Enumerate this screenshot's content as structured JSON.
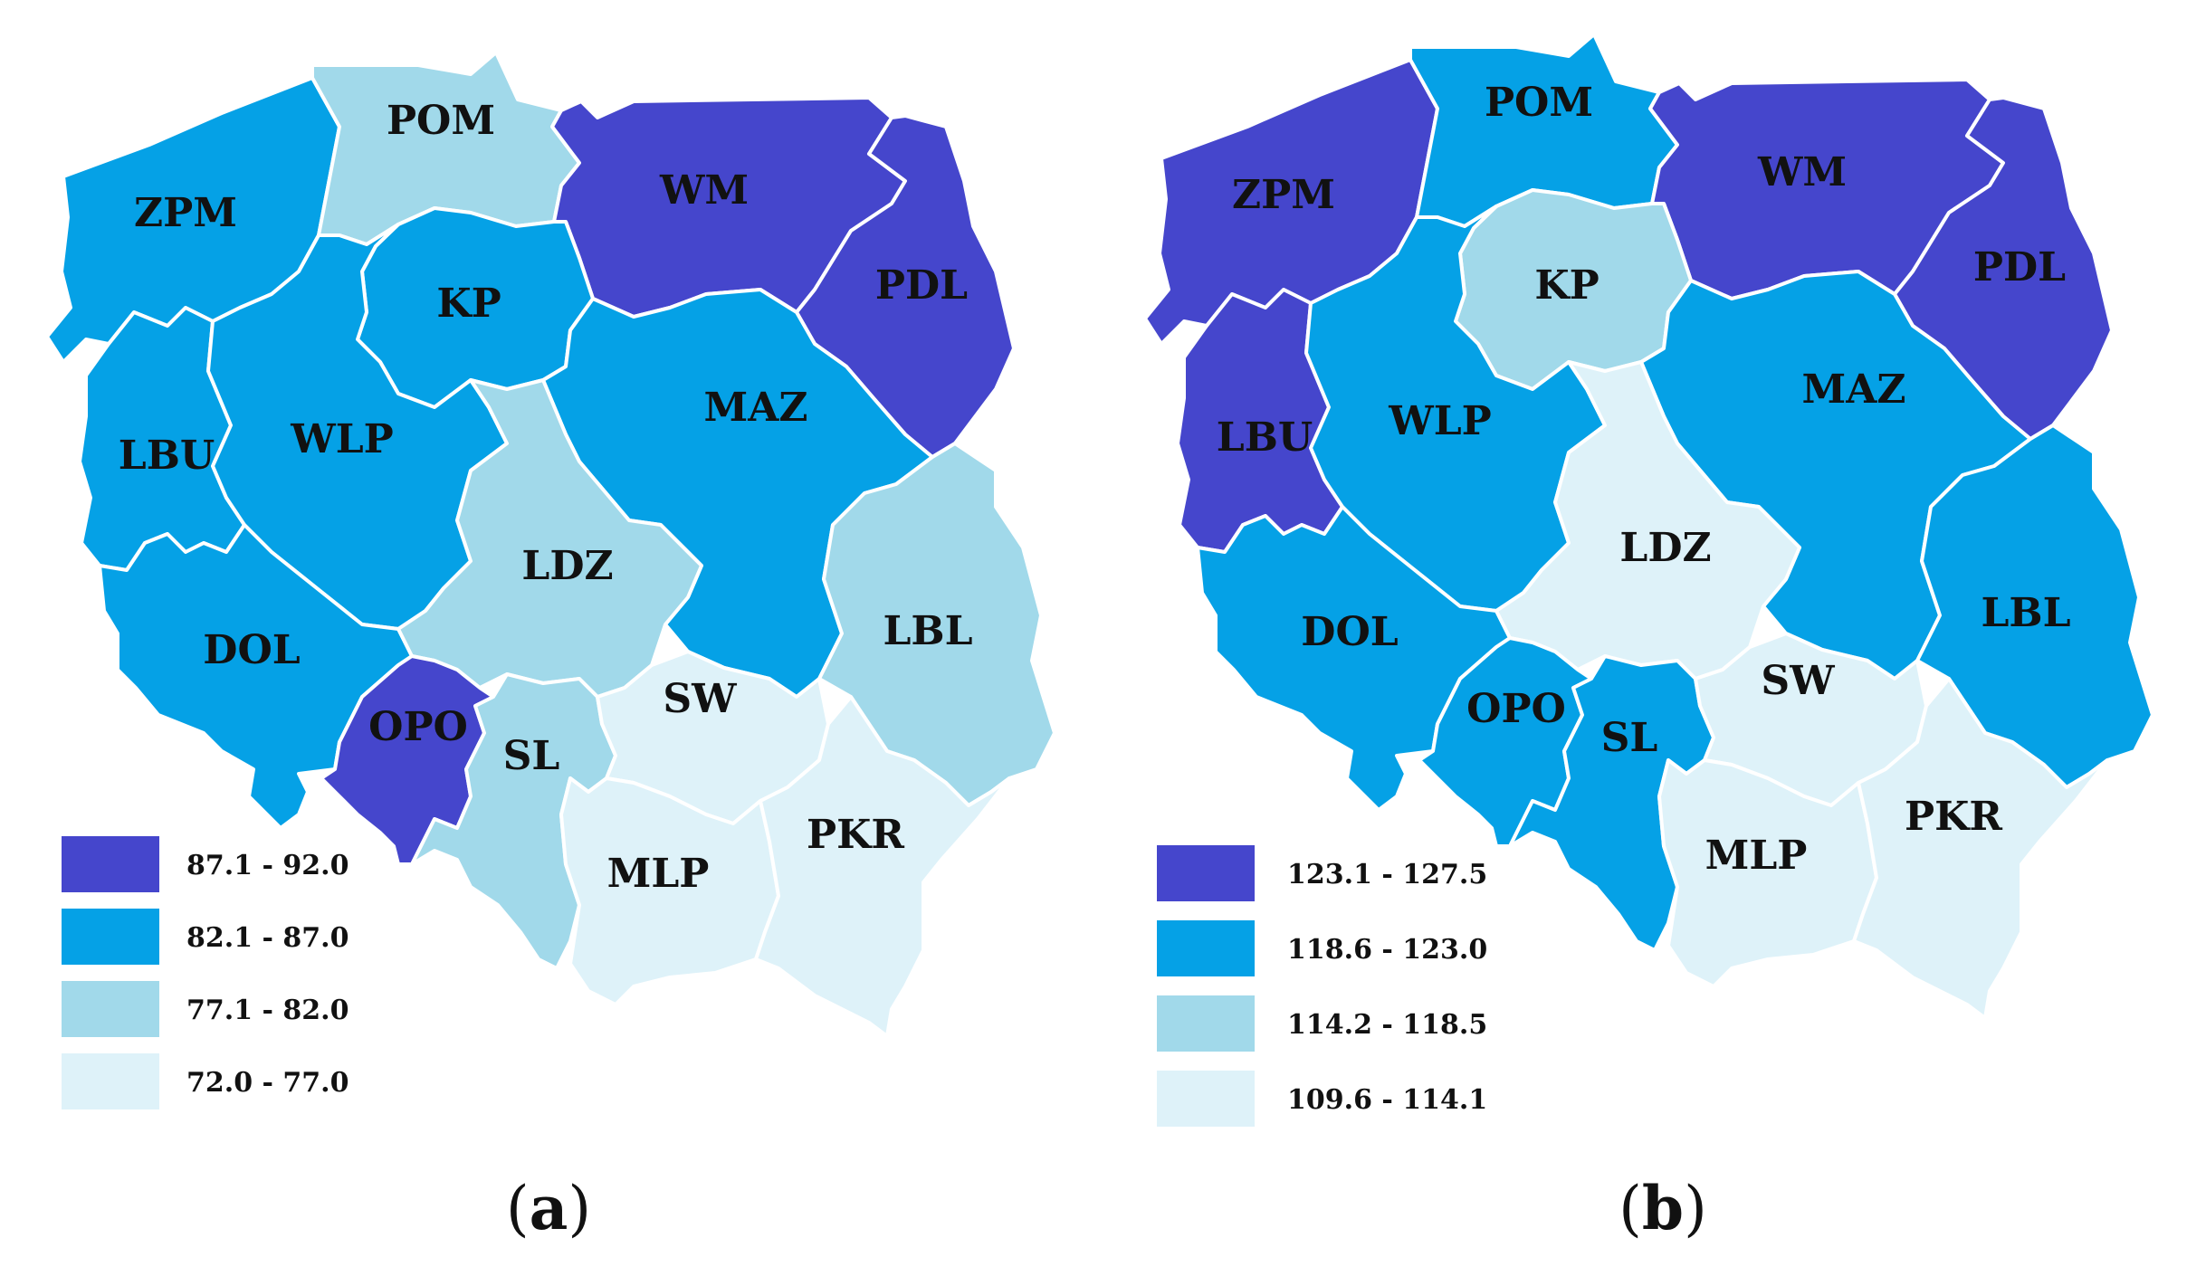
{
  "colors": {
    "class_1": "#4546cc",
    "class_2": "#05a1e6",
    "class_3": "#a1d9ea",
    "class_4": "#def2f9"
  },
  "maps": [
    {
      "id": "a",
      "panel_label": "a",
      "legend": [
        {
          "range": "87.1 - 92.0",
          "class": "class_1"
        },
        {
          "range": "82.1 - 87.0",
          "class": "class_2"
        },
        {
          "range": "77.1 - 82.0",
          "class": "class_3"
        },
        {
          "range": "72.0 - 77.0",
          "class": "class_4"
        }
      ],
      "regions": {
        "ZPM": "class_2",
        "POM": "class_3",
        "WM": "class_1",
        "PDL": "class_1",
        "LBU": "class_2",
        "WLP": "class_2",
        "KP": "class_2",
        "MAZ": "class_2",
        "DOL": "class_2",
        "LDZ": "class_3",
        "LBL": "class_3",
        "OPO": "class_1",
        "SL": "class_3",
        "SW": "class_4",
        "MLP": "class_4",
        "PKR": "class_4"
      }
    },
    {
      "id": "b",
      "panel_label": "b",
      "legend": [
        {
          "range": "123.1 - 127.5",
          "class": "class_1"
        },
        {
          "range": "118.6 - 123.0",
          "class": "class_2"
        },
        {
          "range": "114.2 - 118.5",
          "class": "class_3"
        },
        {
          "range": "109.6 - 114.1",
          "class": "class_4"
        }
      ],
      "regions": {
        "ZPM": "class_1",
        "POM": "class_2",
        "WM": "class_1",
        "PDL": "class_1",
        "LBU": "class_1",
        "WLP": "class_2",
        "KP": "class_3",
        "MAZ": "class_2",
        "DOL": "class_2",
        "LDZ": "class_4",
        "LBL": "class_2",
        "OPO": "class_2",
        "SL": "class_2",
        "SW": "class_4",
        "MLP": "class_4",
        "PKR": "class_4"
      }
    }
  ]
}
